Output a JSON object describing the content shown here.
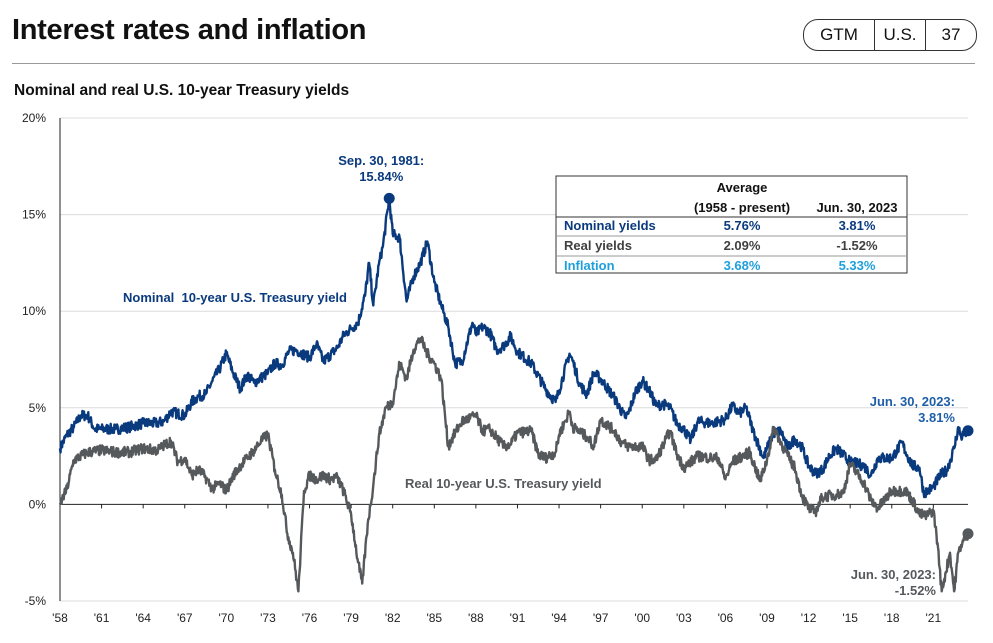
{
  "header": {
    "title": "Interest rates and inflation",
    "badge": {
      "source": "GTM",
      "region": "U.S.",
      "page": "37"
    }
  },
  "chart_data": {
    "type": "line",
    "title": "Nominal and real U.S. 10-year Treasury yields",
    "xlabel": "",
    "ylabel": "",
    "xlim": [
      1958,
      2023.5
    ],
    "ylim": [
      -5,
      20
    ],
    "y_ticks": [
      "20%",
      "15%",
      "10%",
      "5%",
      "0%",
      "-5%"
    ],
    "y_tick_values": [
      20,
      15,
      10,
      5,
      0,
      -5
    ],
    "x_ticks": [
      "'58",
      "'61",
      "'64",
      "'67",
      "'70",
      "'73",
      "'76",
      "'79",
      "'82",
      "'85",
      "'88",
      "'91",
      "'94",
      "'97",
      "'00",
      "'03",
      "'06",
      "'09",
      "'12",
      "'15",
      "'18",
      "'21"
    ],
    "x_tick_values": [
      1958,
      1961,
      1964,
      1967,
      1970,
      1973,
      1976,
      1979,
      1982,
      1985,
      1988,
      1991,
      1994,
      1997,
      2000,
      2003,
      2006,
      2009,
      2012,
      2015,
      2018,
      2021
    ],
    "grid": true,
    "series": [
      {
        "name": "Nominal 10-year U.S. Treasury yield",
        "color": "#0a3a7e",
        "x": [
          1958.0,
          1958.5,
          1959.0,
          1959.5,
          1960.0,
          1960.5,
          1961.0,
          1962.0,
          1963.0,
          1964.0,
          1965.0,
          1965.5,
          1966.0,
          1967.0,
          1967.5,
          1968.0,
          1968.5,
          1969.0,
          1969.5,
          1970.0,
          1970.5,
          1971.0,
          1971.5,
          1972.0,
          1973.0,
          1973.5,
          1974.0,
          1974.5,
          1975.0,
          1976.0,
          1976.5,
          1977.0,
          1978.0,
          1978.5,
          1979.0,
          1979.5,
          1980.0,
          1980.3,
          1980.6,
          1981.0,
          1981.3,
          1981.75,
          1982.0,
          1982.5,
          1983.0,
          1983.5,
          1984.0,
          1984.5,
          1985.0,
          1985.5,
          1986.0,
          1986.5,
          1987.0,
          1987.75,
          1988.0,
          1988.5,
          1989.0,
          1989.5,
          1990.0,
          1990.5,
          1991.0,
          1992.0,
          1993.0,
          1993.75,
          1994.0,
          1994.75,
          1995.0,
          1995.5,
          1996.0,
          1996.5,
          1997.0,
          1998.0,
          1998.75,
          1999.0,
          1999.5,
          2000.0,
          2000.5,
          2001.0,
          2001.5,
          2002.0,
          2002.5,
          2003.0,
          2003.5,
          2004.0,
          2005.0,
          2006.0,
          2006.5,
          2007.0,
          2007.5,
          2008.0,
          2008.75,
          2009.0,
          2009.5,
          2010.0,
          2010.5,
          2011.0,
          2011.5,
          2012.0,
          2012.5,
          2013.0,
          2013.5,
          2014.0,
          2015.0,
          2016.0,
          2016.5,
          2017.0,
          2018.0,
          2018.75,
          2019.0,
          2019.5,
          2020.0,
          2020.3,
          2020.6,
          2021.0,
          2021.5,
          2022.0,
          2022.5,
          2022.8,
          2023.0,
          2023.5
        ],
        "values": [
          2.9,
          3.6,
          4.0,
          4.6,
          4.6,
          3.9,
          3.9,
          3.9,
          4.0,
          4.2,
          4.2,
          4.3,
          4.8,
          4.6,
          5.3,
          5.6,
          5.7,
          6.4,
          7.0,
          7.8,
          6.8,
          6.0,
          6.7,
          6.3,
          6.8,
          7.3,
          7.2,
          7.9,
          8.0,
          7.6,
          8.3,
          7.4,
          8.1,
          8.8,
          9.1,
          9.4,
          10.8,
          12.5,
          10.3,
          12.4,
          13.4,
          15.84,
          14.0,
          13.8,
          10.5,
          11.8,
          12.5,
          13.6,
          11.5,
          10.3,
          9.2,
          7.3,
          7.4,
          9.4,
          8.8,
          9.2,
          8.9,
          8.0,
          8.2,
          8.7,
          7.9,
          7.3,
          6.0,
          5.3,
          5.9,
          7.8,
          7.4,
          6.2,
          5.7,
          6.8,
          6.5,
          5.5,
          4.5,
          4.7,
          5.8,
          6.4,
          5.9,
          5.1,
          5.2,
          5.0,
          4.2,
          3.9,
          3.3,
          4.3,
          4.2,
          4.4,
          5.1,
          4.7,
          5.0,
          3.8,
          2.4,
          2.9,
          3.7,
          3.8,
          2.9,
          3.4,
          3.0,
          2.0,
          1.6,
          1.8,
          2.5,
          2.9,
          2.2,
          2.0,
          1.5,
          2.4,
          2.4,
          3.2,
          2.7,
          2.0,
          1.9,
          0.6,
          0.7,
          0.9,
          1.5,
          1.8,
          2.9,
          4.0,
          3.5,
          3.81
        ]
      },
      {
        "name": "Real 10-year U.S. Treasury yield",
        "color": "#56595c",
        "x": [
          1958.0,
          1958.5,
          1959.0,
          1960.0,
          1961.0,
          1962.0,
          1963.0,
          1964.0,
          1965.0,
          1966.0,
          1966.5,
          1967.0,
          1967.5,
          1968.0,
          1968.5,
          1969.0,
          1969.5,
          1970.0,
          1970.5,
          1971.0,
          1971.5,
          1972.0,
          1972.5,
          1973.0,
          1973.5,
          1974.0,
          1974.4,
          1974.8,
          1975.2,
          1975.6,
          1976.0,
          1976.5,
          1977.0,
          1977.5,
          1978.0,
          1978.5,
          1979.0,
          1979.5,
          1979.8,
          1980.2,
          1980.6,
          1981.0,
          1981.5,
          1982.0,
          1982.5,
          1983.0,
          1983.5,
          1984.0,
          1984.5,
          1985.0,
          1985.5,
          1986.0,
          1986.5,
          1987.0,
          1988.0,
          1988.5,
          1989.0,
          1990.0,
          1990.5,
          1991.0,
          1992.0,
          1992.5,
          1993.0,
          1993.75,
          1994.0,
          1994.75,
          1995.0,
          1996.0,
          1996.5,
          1997.0,
          1998.0,
          1998.5,
          1999.0,
          2000.0,
          2000.5,
          2001.0,
          2002.0,
          2002.5,
          2003.0,
          2004.0,
          2005.0,
          2005.5,
          2006.0,
          2006.5,
          2007.0,
          2007.75,
          2008.0,
          2008.5,
          2009.0,
          2009.5,
          2010.0,
          2010.5,
          2011.0,
          2011.5,
          2012.0,
          2012.5,
          2013.0,
          2014.0,
          2014.5,
          2015.0,
          2016.0,
          2016.5,
          2017.0,
          2018.0,
          2019.0,
          2019.5,
          2020.0,
          2020.5,
          2021.0,
          2021.3,
          2021.6,
          2021.9,
          2022.2,
          2022.5,
          2022.8,
          2023.0,
          2023.5
        ],
        "values": [
          0.0,
          0.8,
          2.3,
          2.7,
          2.8,
          2.7,
          2.7,
          2.9,
          2.8,
          3.3,
          2.2,
          2.4,
          1.5,
          1.8,
          1.4,
          0.8,
          1.1,
          0.7,
          1.5,
          2.0,
          2.4,
          2.8,
          3.3,
          3.6,
          1.8,
          0.5,
          -1.5,
          -2.5,
          -4.5,
          0.7,
          1.5,
          1.3,
          1.5,
          1.3,
          1.4,
          0.6,
          -0.5,
          -3.0,
          -4.1,
          -1.0,
          1.0,
          3.5,
          5.0,
          5.3,
          7.3,
          6.5,
          8.0,
          8.6,
          7.8,
          7.3,
          6.5,
          3.0,
          3.7,
          4.3,
          4.6,
          3.8,
          3.9,
          3.0,
          3.1,
          3.7,
          3.8,
          2.6,
          2.4,
          2.7,
          3.6,
          4.8,
          4.0,
          3.5,
          3.0,
          4.4,
          3.8,
          3.2,
          3.0,
          3.0,
          2.3,
          2.3,
          3.8,
          2.6,
          1.9,
          2.5,
          2.4,
          2.4,
          1.3,
          2.2,
          2.4,
          2.7,
          2.2,
          1.2,
          2.3,
          4.0,
          3.2,
          2.5,
          1.9,
          0.5,
          -0.2,
          -0.4,
          0.4,
          0.5,
          0.6,
          2.1,
          1.1,
          0.2,
          -0.2,
          0.7,
          0.7,
          0.2,
          -0.5,
          -0.6,
          -0.3,
          -2.0,
          -4.5,
          -3.5,
          -2.5,
          -4.5,
          -2.5,
          -2.1,
          -1.52
        ]
      }
    ],
    "annotations": {
      "peak": {
        "label": "Sep. 30, 1981:",
        "value": "15.84%",
        "x": 1981.75,
        "y": 15.84
      },
      "nominal_series_label": "Nominal  10-year U.S. Treasury yield",
      "real_series_label": "Real 10-year U.S. Treasury yield",
      "nominal_end": {
        "label": "Jun. 30, 2023:",
        "value": "3.81%",
        "x": 2023.5,
        "y": 3.81
      },
      "real_end": {
        "label": "Jun. 30, 2023:",
        "value": "-1.52%",
        "x": 2023.5,
        "y": -1.52
      }
    },
    "table": {
      "headers": [
        "",
        "Average\n(1958 - present)",
        "Jun. 30, 2023"
      ],
      "header_line1": "Average",
      "header_line2": "(1958 - present)",
      "header_date": "Jun. 30, 2023",
      "rows": [
        {
          "label": "Nominal yields",
          "average": "5.76%",
          "latest": "3.81%",
          "color": "#0a3a7e"
        },
        {
          "label": "Real yields",
          "average": "2.09%",
          "latest": "-1.52%",
          "color": "#404040"
        },
        {
          "label": "Inflation",
          "average": "3.68%",
          "latest": "5.33%",
          "color": "#1fa0dc"
        }
      ]
    }
  }
}
